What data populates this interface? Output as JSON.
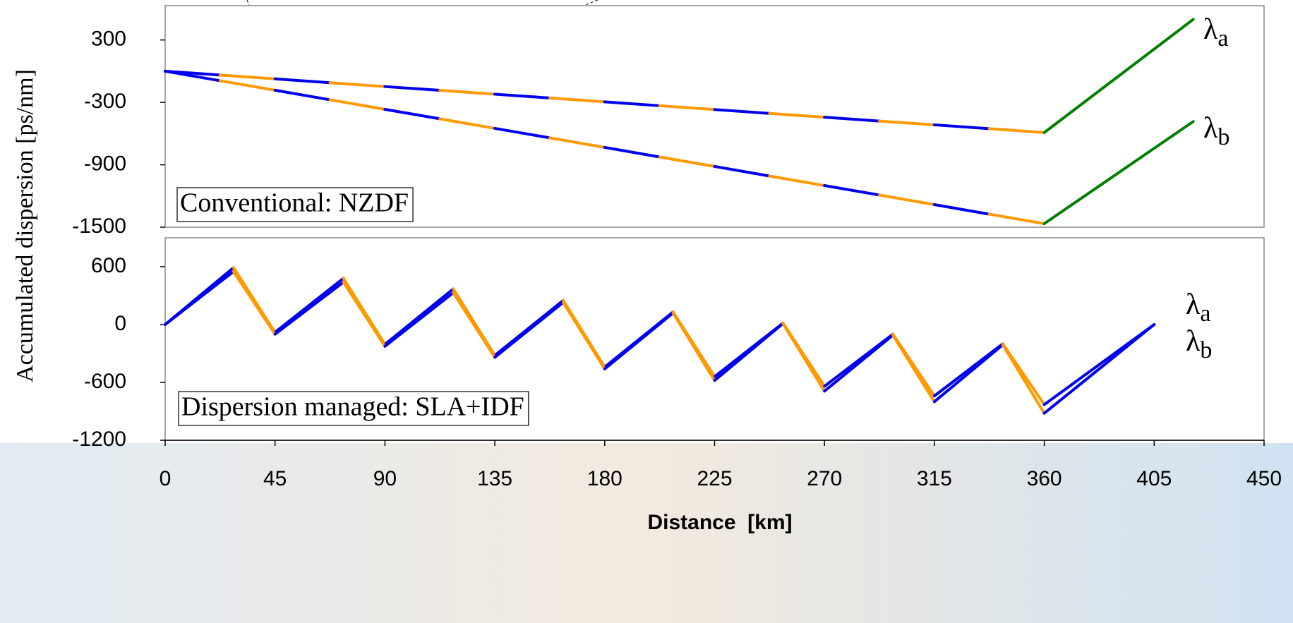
{
  "chart_data": [
    {
      "type": "line",
      "ylabel": "Accumulated dispersion [ps/nm]",
      "annotation": "Conventional: NZDF",
      "xlim": [
        0,
        450
      ],
      "ylim": [
        -1500,
        630
      ],
      "yticks": [
        -1500,
        -900,
        -300,
        300
      ],
      "segment_colors": [
        "#0000ee",
        "#ff9900"
      ],
      "series": [
        {
          "x": [
            0,
            22.5,
            45,
            67.5,
            90,
            112.5,
            135,
            157.5,
            180,
            202.5,
            225,
            247.5,
            270,
            292.5,
            315,
            337.5,
            360
          ],
          "values": [
            0,
            -37,
            -74,
            -111,
            -148,
            -184,
            -221,
            -258,
            -295,
            -332,
            -369,
            -406,
            -443,
            -480,
            -516,
            -553,
            -590
          ]
        },
        {
          "x": [
            0,
            22.5,
            45,
            67.5,
            90,
            112.5,
            135,
            157.5,
            180,
            202.5,
            225,
            247.5,
            270,
            292.5,
            315,
            337.5,
            360
          ],
          "values": [
            0,
            -92,
            -183,
            -275,
            -367,
            -458,
            -550,
            -641,
            -733,
            -825,
            -916,
            -1008,
            -1100,
            -1191,
            -1283,
            -1375,
            -1466
          ]
        },
        {
          "x": [
            360,
            421
          ],
          "values": [
            -590,
            498
          ],
          "color": "#008000"
        },
        {
          "x": [
            360,
            421
          ],
          "values": [
            -1466,
            -484
          ],
          "color": "#008000"
        }
      ],
      "line_labels": [
        {
          "symbol": "λ",
          "sub": "a"
        },
        {
          "symbol": "λ",
          "sub": "b"
        }
      ]
    },
    {
      "type": "line",
      "annotation": "Dispersion managed: SLA+IDF",
      "xlabel": "Distance  [km]",
      "xlim": [
        0,
        450
      ],
      "xticks": [
        0,
        45,
        90,
        135,
        180,
        225,
        270,
        315,
        360,
        405,
        450
      ],
      "ylim": [
        -1200,
        900
      ],
      "yticks": [
        -1200,
        -600,
        0,
        600
      ],
      "segment_colors": [
        "#0000ee",
        "#ff9900"
      ],
      "series": [
        {
          "x": [
            0,
            28,
            45,
            73,
            90,
            118,
            135,
            163,
            180,
            208,
            225,
            253,
            270,
            298,
            315,
            343,
            360,
            405
          ],
          "values": [
            0,
            590,
            -80,
            480,
            -205,
            370,
            -320,
            250,
            -440,
            130,
            -540,
            15,
            -640,
            -100,
            -740,
            -200,
            -830,
            0
          ]
        },
        {
          "x": [
            0,
            28,
            45,
            73,
            90,
            118,
            135,
            163,
            180,
            208,
            225,
            253,
            270,
            298,
            315,
            343,
            360,
            405
          ],
          "values": [
            0,
            550,
            -100,
            440,
            -225,
            330,
            -340,
            230,
            -460,
            120,
            -580,
            10,
            -690,
            -110,
            -800,
            -210,
            -920,
            0
          ]
        }
      ],
      "line_labels": [
        {
          "symbol": "λ",
          "sub": "a"
        },
        {
          "symbol": "λ",
          "sub": "b"
        }
      ]
    }
  ]
}
